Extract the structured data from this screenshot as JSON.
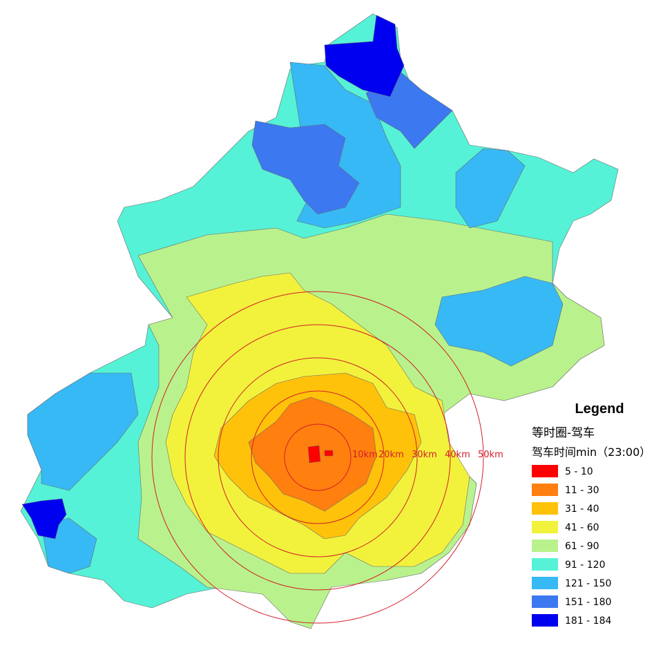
{
  "legend": {
    "title": "Legend",
    "layer": "等时圈-驾车",
    "subtitle": "驾车时间min（23:00）",
    "items": [
      {
        "label": "5 - 10",
        "color": "#ff0000"
      },
      {
        "label": "11 - 30",
        "color": "#ff7f0f"
      },
      {
        "label": "31 - 40",
        "color": "#ffc20a"
      },
      {
        "label": "41 - 60",
        "color": "#f2f23c"
      },
      {
        "label": "61 - 90",
        "color": "#b9f28c"
      },
      {
        "label": "91 - 120",
        "color": "#55f2d7"
      },
      {
        "label": "121 - 150",
        "color": "#37b9f5"
      },
      {
        "label": "151 - 180",
        "color": "#3c78f0"
      },
      {
        "label": "181 - 184",
        "color": "#0000f0"
      }
    ]
  },
  "rings": [
    "10km",
    "20km",
    "30km",
    "40km",
    "50km"
  ]
}
